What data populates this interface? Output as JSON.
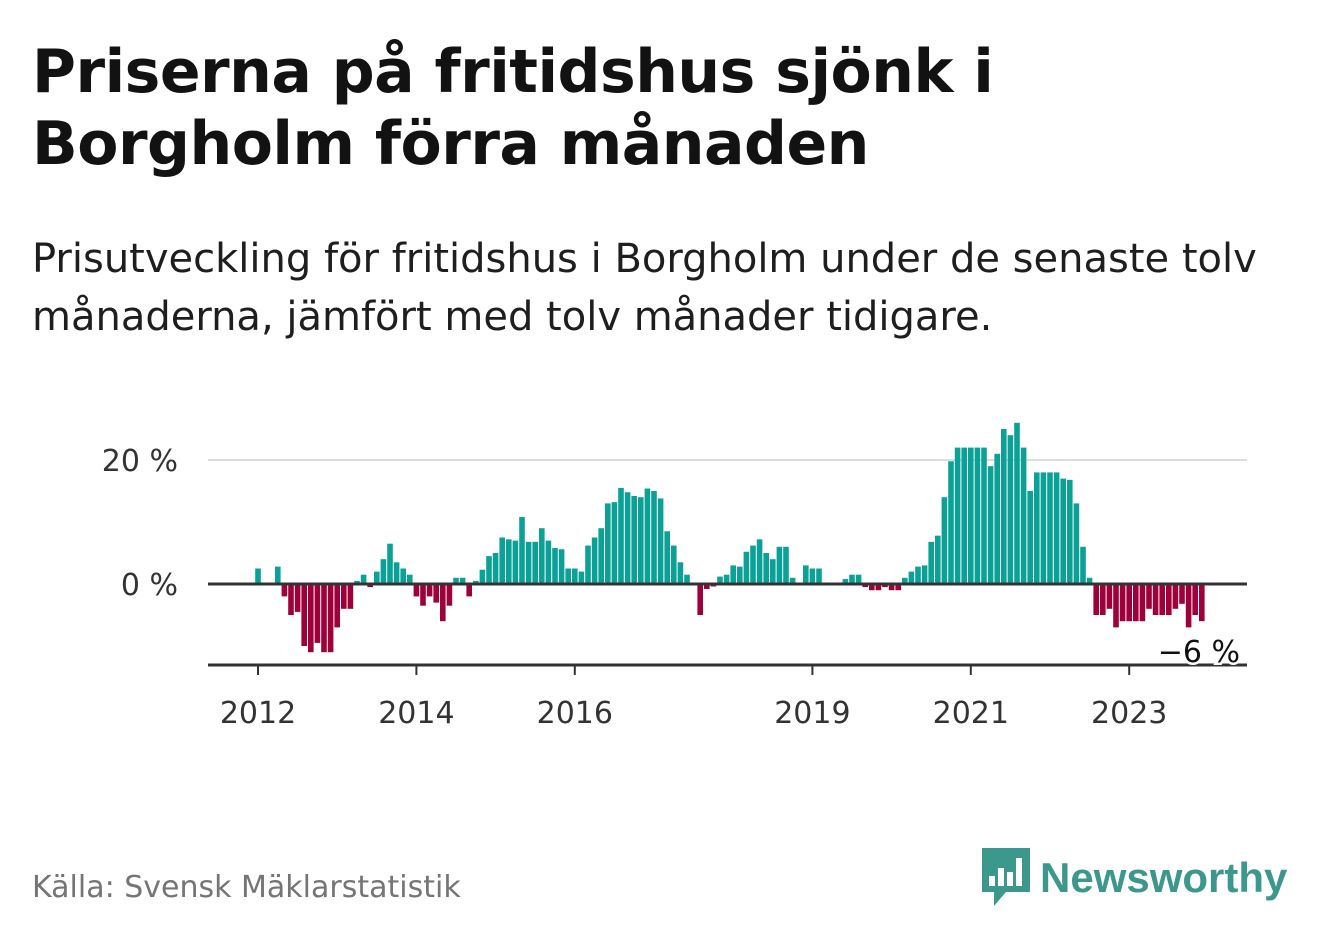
{
  "title": "Priserna på fritidshus sjönk i Borgholm förra månaden",
  "subtitle": "Prisutveckling för fritidshus i Borgholm under de senaste tolv månaderna, jämfört med tolv månader tidigare.",
  "source": "Källa: Svensk Mäklarstatistik",
  "brand": {
    "name": "Newsworthy",
    "icon": "newsworthy-logo-icon",
    "color": "#3c978d"
  },
  "colors": {
    "positive": "#0ca197",
    "negative": "#9e0039",
    "axis": "#333333",
    "grid": "#dddddd"
  },
  "chart_data": {
    "type": "bar",
    "title": "Priserna på fritidshus sjönk i Borgholm förra månaden",
    "xlabel": "",
    "ylabel": "",
    "ylim": [
      -13,
      28
    ],
    "start": "2012-01",
    "y_ticks": [
      {
        "value": 0,
        "label": "0 %"
      },
      {
        "value": 20,
        "label": "20 %"
      }
    ],
    "x_ticks": [
      {
        "index": 0,
        "label": "2012"
      },
      {
        "index": 24,
        "label": "2014"
      },
      {
        "index": 48,
        "label": "2016"
      },
      {
        "index": 84,
        "label": "2019"
      },
      {
        "index": 108,
        "label": "2021"
      },
      {
        "index": 132,
        "label": "2023"
      }
    ],
    "end_label": {
      "index": 143,
      "label": "−6 %"
    },
    "values": [
      2.5,
      0,
      0,
      2.8,
      -2,
      -5,
      -4.5,
      -10,
      -11,
      -9.5,
      -11,
      -11,
      -7,
      -4,
      -4,
      0.5,
      1.5,
      -0.5,
      2,
      4,
      6.5,
      3.5,
      2.5,
      1.5,
      -2,
      -3.5,
      -2,
      -3,
      -6,
      -3.5,
      1,
      1,
      -2,
      0.5,
      2.3,
      4.5,
      5,
      7.5,
      7.2,
      7,
      10.8,
      6.8,
      6.8,
      9,
      7,
      5.8,
      5.6,
      2.5,
      2.5,
      2,
      6.2,
      7.5,
      9,
      13,
      13.2,
      15.5,
      14.8,
      14.2,
      14,
      15.4,
      15,
      13.8,
      8.5,
      6.2,
      3.5,
      1.5,
      0,
      -5,
      -0.8,
      -0.4,
      1.2,
      1.5,
      3,
      2.8,
      5.2,
      6.2,
      7.2,
      5,
      4,
      6,
      6,
      1,
      0,
      3,
      2.5,
      2.5,
      0,
      0,
      0,
      0.8,
      1.5,
      1.5,
      -0.5,
      -1,
      -1,
      -0.5,
      -1,
      -1,
      1,
      2,
      2.8,
      3,
      6.8,
      7.8,
      14,
      19.8,
      22,
      22,
      22,
      22,
      22,
      19,
      21,
      25,
      24,
      26,
      22,
      15,
      18,
      18,
      18,
      18,
      17,
      16.8,
      13,
      6,
      1,
      -5,
      -5,
      -4,
      -7,
      -6,
      -6,
      -6,
      -6,
      -4,
      -5,
      -5,
      -5,
      -4,
      -3.2,
      -7,
      -5,
      -6
    ]
  }
}
